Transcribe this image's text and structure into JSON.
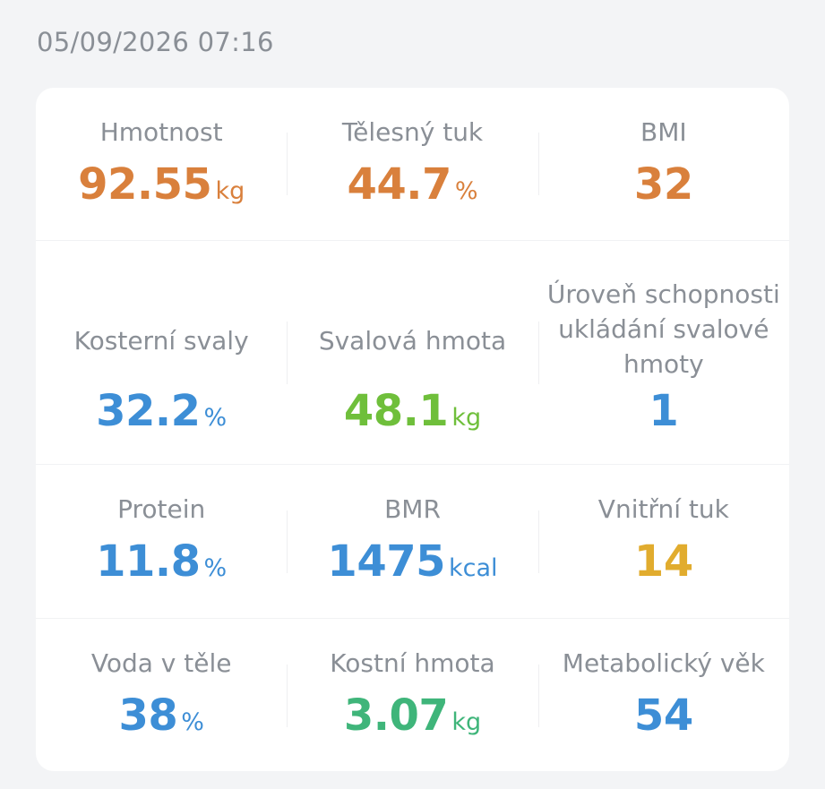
{
  "timestamp": "05/09/2026 07:16",
  "metrics": [
    {
      "label": "Hmotnost",
      "value": "92.55",
      "unit": "kg",
      "color": "#d9803c"
    },
    {
      "label": "Tělesný tuk",
      "value": "44.7",
      "unit": "%",
      "color": "#d9803c"
    },
    {
      "label": "BMI",
      "value": "32",
      "unit": "",
      "color": "#d9803c"
    },
    {
      "label": "Kosterní svaly",
      "value": "32.2",
      "unit": "%",
      "color": "#3d8ed6"
    },
    {
      "label": "Svalová hmota",
      "value": "48.1",
      "unit": "kg",
      "color": "#6fbf3b"
    },
    {
      "label": "Úroveň schopnosti ukládání svalové hmoty",
      "value": "1",
      "unit": "",
      "color": "#3d8ed6"
    },
    {
      "label": "Protein",
      "value": "11.8",
      "unit": "%",
      "color": "#3d8ed6"
    },
    {
      "label": "BMR",
      "value": "1475",
      "unit": "kcal",
      "color": "#3d8ed6"
    },
    {
      "label": "Vnitřní tuk",
      "value": "14",
      "unit": "",
      "color": "#e1ac2e"
    },
    {
      "label": "Voda v těle",
      "value": "38",
      "unit": "%",
      "color": "#3d8ed6"
    },
    {
      "label": "Kostní hmota",
      "value": "3.07",
      "unit": "kg",
      "color": "#3fb57a"
    },
    {
      "label": "Metabolický věk",
      "value": "54",
      "unit": "",
      "color": "#3d8ed6"
    }
  ]
}
